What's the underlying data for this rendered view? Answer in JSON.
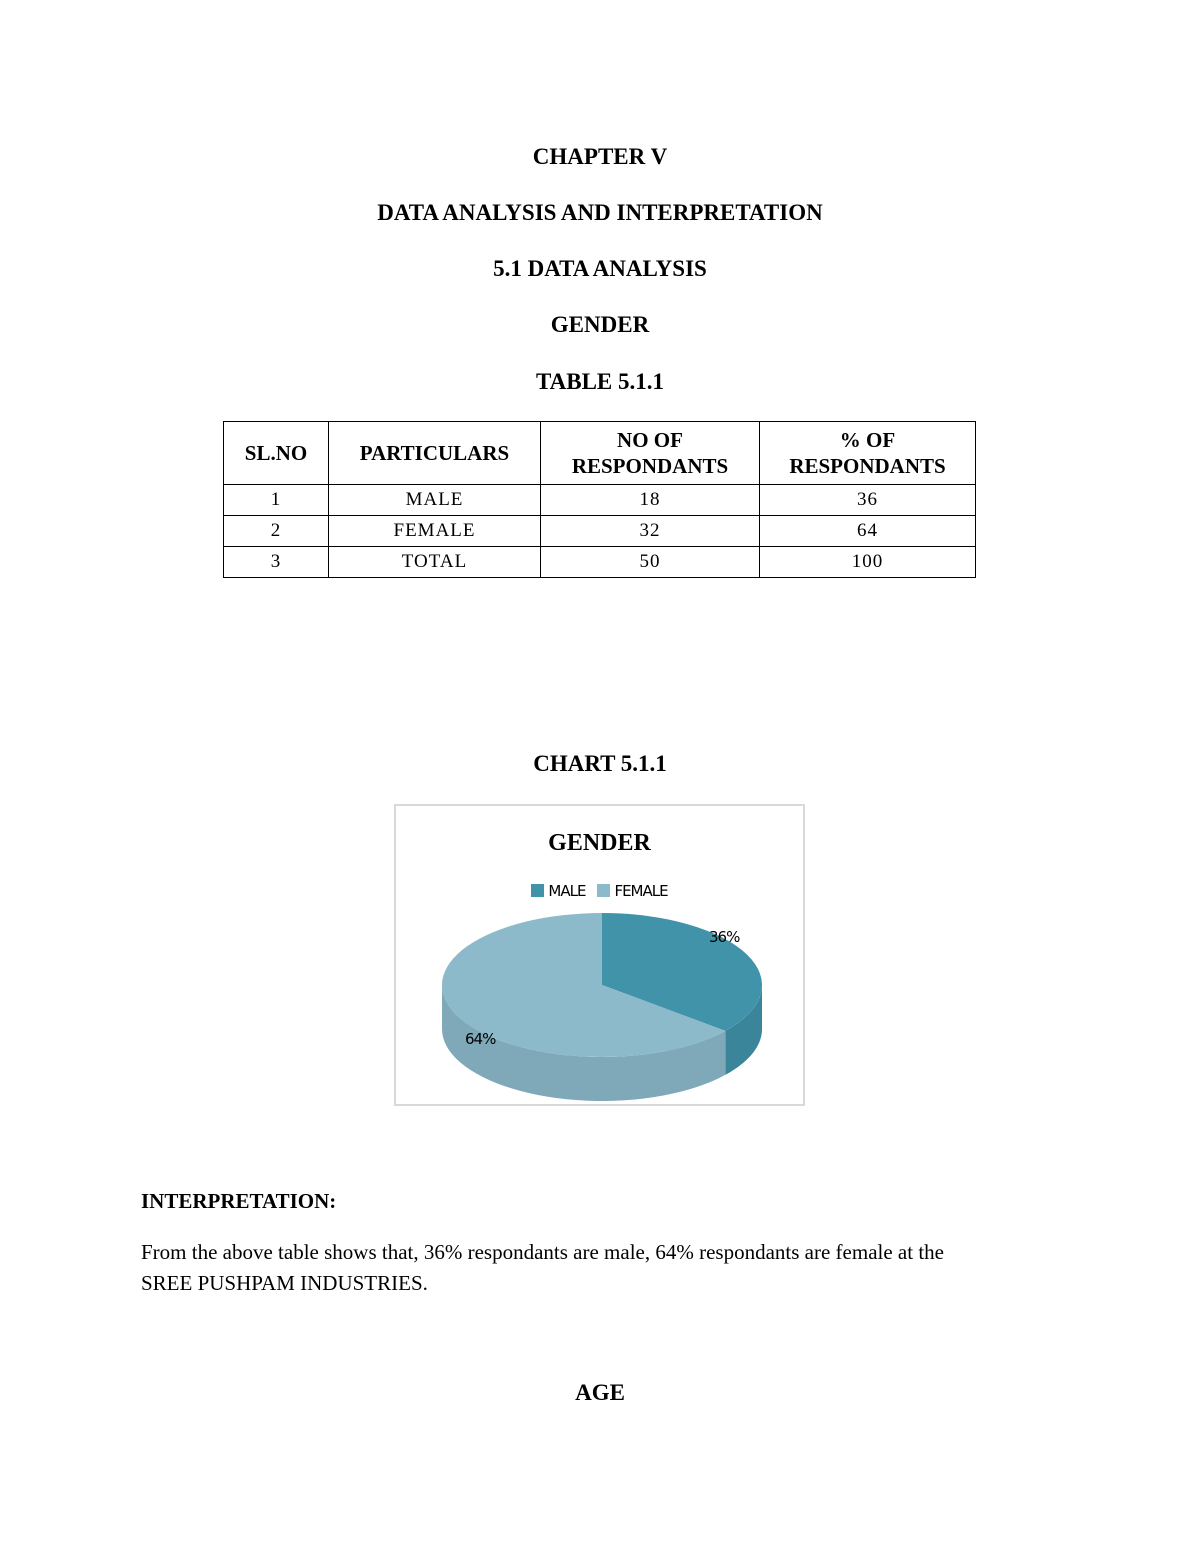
{
  "headings": {
    "chapter": "CHAPTER  V",
    "title": "DATA ANALYSIS AND INTERPRETATION",
    "section": "5.1 DATA ANALYSIS",
    "topic": "GENDER",
    "table_caption": "TABLE 5.1.1",
    "chart_caption": "CHART 5.1.1",
    "next_topic": "AGE"
  },
  "table": {
    "headers": [
      "SL.NO",
      "PARTICULARS",
      "NO OF RESPONDANTS",
      "% OF RESPONDANTS"
    ],
    "rows": [
      [
        "1",
        "MALE",
        "18",
        "36"
      ],
      [
        "2",
        "FEMALE",
        "32",
        "64"
      ],
      [
        "3",
        "TOTAL",
        "50",
        "100"
      ]
    ]
  },
  "chart_data": {
    "type": "pie",
    "title": "GENDER",
    "categories": [
      "MALE",
      "FEMALE"
    ],
    "values": [
      36,
      64
    ],
    "labels": [
      "36%",
      "64%"
    ],
    "colors": [
      "#4193a9",
      "#8dbacb"
    ],
    "legend": "top",
    "style": "3d"
  },
  "interpretation": {
    "heading": "INTERPRETATION:",
    "line1": "From the above table shows that, 36% respondants are male, 64% respondants are female at the",
    "line2": "SREE PUSHPAM INDUSTRIES."
  }
}
